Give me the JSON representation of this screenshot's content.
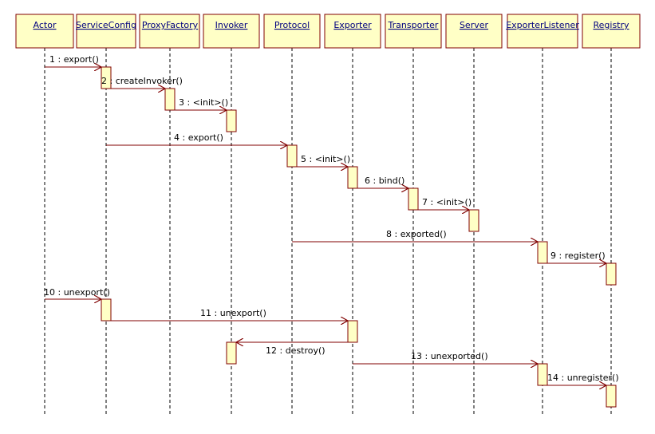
{
  "participants": [
    "Actor",
    "ServiceConfig",
    "ProxyFactory",
    "Invoker",
    "Protocol",
    "Exporter",
    "Transporter",
    "Server",
    "ExporterListener",
    "Registry"
  ],
  "messages": [
    "1 : export()",
    "2 : createInvoker()",
    "3 : <init>()",
    "4 : export()",
    "5 : <init>()",
    "6 : bind()",
    "7 : <init>()",
    "8 : exported()",
    "9 : register()",
    "10 : unexport()",
    "11 : unexport()",
    "12 : destroy()",
    "13 : unexported()",
    "14 : unregister()"
  ]
}
